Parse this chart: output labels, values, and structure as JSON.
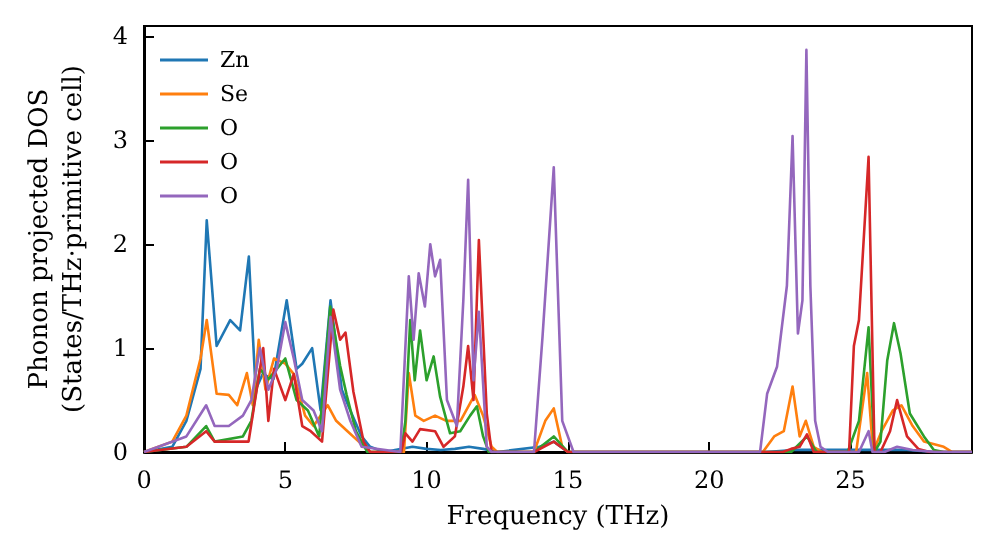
{
  "chart_data": {
    "type": "line",
    "xlabel": "Frequency (THz)",
    "ylabel": "Phonon projected DOS\n(States/THz·primitive cell)",
    "xlim": [
      0,
      29.3
    ],
    "ylim": [
      0,
      4.1
    ],
    "xticks": [
      0,
      5,
      10,
      15,
      20,
      25
    ],
    "yticks": [
      0,
      1,
      2,
      3,
      4
    ],
    "grid": false,
    "legend": "top left",
    "marker": "none",
    "line_style": "solid",
    "series": [
      {
        "name": "Zn",
        "color": "#1f77b4",
        "x": [
          0,
          1,
          1.5,
          2,
          2.22,
          2.57,
          3.05,
          3.4,
          3.71,
          3.95,
          4.2,
          4.58,
          5.05,
          5.4,
          5.6,
          5.95,
          6.25,
          6.6,
          7.0,
          7.3,
          7.7,
          8.0,
          8.5,
          9.5,
          10,
          10.5,
          11,
          11.5,
          12,
          12.5,
          14,
          14.5,
          15,
          22,
          23,
          25,
          26,
          27,
          28,
          29.3
        ],
        "values": [
          0,
          0.05,
          0.3,
          0.8,
          2.23,
          1.02,
          1.27,
          1.17,
          1.88,
          0.6,
          0.75,
          0.7,
          1.46,
          0.8,
          0.85,
          1.0,
          0.4,
          1.46,
          0.6,
          0.4,
          0.15,
          0.05,
          0,
          0.05,
          0.03,
          0.02,
          0.03,
          0.05,
          0.03,
          0,
          0.05,
          0.1,
          0,
          0,
          0.02,
          0.02,
          0.02,
          0.02,
          0,
          0
        ]
      },
      {
        "name": "Se",
        "color": "#ff7f0e",
        "x": [
          0,
          1,
          1.5,
          2,
          2.22,
          2.57,
          3,
          3.3,
          3.64,
          3.85,
          4.06,
          4.3,
          4.6,
          5,
          5.3,
          5.7,
          6,
          6.5,
          6.8,
          7.2,
          7.6,
          8,
          9.2,
          9.37,
          9.6,
          9.9,
          10.3,
          10.7,
          11.2,
          11.7,
          12,
          12.3,
          12.5,
          13.8,
          14.2,
          14.5,
          14.8,
          15,
          21.9,
          22.3,
          22.64,
          22.95,
          23.2,
          23.42,
          23.7,
          24,
          25.2,
          25.59,
          25.8,
          26.1,
          26.5,
          26.8,
          27.2,
          27.6,
          28.3,
          28.6,
          29.3
        ],
        "values": [
          0,
          0.1,
          0.35,
          0.9,
          1.27,
          0.56,
          0.55,
          0.45,
          0.76,
          0.45,
          1.08,
          0.6,
          0.9,
          0.85,
          0.75,
          0.35,
          0.25,
          0.45,
          0.3,
          0.2,
          0.1,
          0,
          0,
          0.76,
          0.35,
          0.3,
          0.35,
          0.3,
          0.3,
          0.55,
          0.35,
          0.05,
          0,
          0,
          0.3,
          0.42,
          0.05,
          0,
          0,
          0.15,
          0.2,
          0.63,
          0.15,
          0.3,
          0.05,
          0,
          0,
          0.76,
          0,
          0.2,
          0.4,
          0.45,
          0.25,
          0.1,
          0.05,
          0,
          0
        ]
      },
      {
        "name": "O",
        "color": "#2ca02c",
        "x": [
          0,
          1.5,
          2.2,
          2.5,
          3.5,
          3.8,
          4.1,
          4.4,
          4.7,
          5,
          5.4,
          5.8,
          6.2,
          6.59,
          6.94,
          7.17,
          7.5,
          7.9,
          9.1,
          9.25,
          9.42,
          9.58,
          9.77,
          10.0,
          10.25,
          10.48,
          10.83,
          11.19,
          11.54,
          11.78,
          12.0,
          12.2,
          13.8,
          14.5,
          15.0,
          22.9,
          23.46,
          23.8,
          24.9,
          25.3,
          25.64,
          25.85,
          26.06,
          26.3,
          26.54,
          26.77,
          27.1,
          27.6,
          27.95,
          28.3,
          29.3
        ],
        "values": [
          0,
          0.05,
          0.25,
          0.1,
          0.15,
          0.3,
          0.8,
          0.7,
          0.8,
          0.9,
          0.5,
          0.4,
          0.15,
          1.4,
          0.83,
          0.55,
          0.2,
          0,
          0,
          0.3,
          1.27,
          0.69,
          1.17,
          0.69,
          0.92,
          0.53,
          0.18,
          0.2,
          0.35,
          0.44,
          0.15,
          0,
          0,
          0.15,
          0,
          0,
          0.15,
          0,
          0,
          0.3,
          1.2,
          0,
          0.1,
          0.88,
          1.24,
          0.95,
          0.37,
          0.15,
          0.02,
          0,
          0
        ]
      },
      {
        "name": "O",
        "color": "#d62728",
        "x": [
          0,
          1.5,
          2.2,
          2.5,
          3.7,
          4.22,
          4.4,
          4.6,
          5.0,
          5.3,
          5.6,
          5.9,
          6.3,
          6.7,
          6.94,
          7.13,
          7.41,
          7.77,
          8.0,
          9.1,
          9.25,
          9.5,
          9.77,
          10.3,
          10.6,
          11.0,
          11.3,
          11.47,
          11.66,
          11.85,
          12.13,
          12.3,
          13.8,
          14.5,
          15.0,
          22.6,
          22.9,
          23.2,
          23.46,
          23.7,
          24.95,
          25.12,
          25.3,
          25.64,
          25.85,
          26.06,
          26.4,
          26.65,
          27.0,
          27.4,
          27.8,
          29.3
        ],
        "values": [
          0,
          0.05,
          0.2,
          0.1,
          0.1,
          1.0,
          0.3,
          0.8,
          0.5,
          0.75,
          0.25,
          0.2,
          0.1,
          1.37,
          1.08,
          1.15,
          0.58,
          0.1,
          0,
          0,
          0.18,
          0.1,
          0.22,
          0.2,
          0.05,
          0.15,
          0.63,
          1.02,
          0.5,
          2.04,
          0.37,
          0,
          0,
          0.1,
          0,
          0,
          0.03,
          0.05,
          0.17,
          0,
          0,
          1.02,
          1.27,
          2.84,
          0,
          0,
          0.2,
          0.5,
          0.15,
          0.03,
          0,
          0
        ]
      },
      {
        "name": "O",
        "color": "#9467bd",
        "x": [
          0,
          1.5,
          2.2,
          2.5,
          3,
          3.5,
          3.8,
          4.1,
          4.4,
          4.7,
          5,
          5.3,
          5.6,
          6.0,
          6.3,
          6.6,
          6.94,
          7.3,
          7.7,
          9.07,
          9.37,
          9.54,
          9.72,
          9.94,
          10.13,
          10.3,
          10.48,
          10.72,
          11.07,
          11.3,
          11.47,
          11.66,
          11.85,
          12.13,
          12.3,
          13.8,
          14.1,
          14.5,
          14.8,
          15.2,
          21.8,
          22.05,
          22.4,
          22.75,
          22.95,
          23.14,
          23.3,
          23.44,
          23.58,
          23.75,
          23.94,
          24.2,
          25.3,
          25.64,
          25.78,
          26.2,
          26.65,
          27.2,
          28.0,
          29.3
        ],
        "values": [
          0,
          0.15,
          0.45,
          0.25,
          0.25,
          0.35,
          0.5,
          1.0,
          0.6,
          0.8,
          1.25,
          0.9,
          0.5,
          0.4,
          0.2,
          1.3,
          0.6,
          0.3,
          0.05,
          0,
          1.69,
          1.08,
          1.72,
          1.4,
          2.0,
          1.69,
          1.85,
          0.5,
          0.25,
          1.46,
          2.62,
          0.69,
          1.35,
          0.05,
          0,
          0,
          1.1,
          2.74,
          0.3,
          0,
          0,
          0.56,
          0.82,
          1.6,
          3.04,
          1.14,
          1.46,
          3.87,
          1.6,
          0.3,
          0.05,
          0,
          0,
          0.2,
          0,
          0,
          0.05,
          0.02,
          0,
          0
        ]
      }
    ]
  }
}
